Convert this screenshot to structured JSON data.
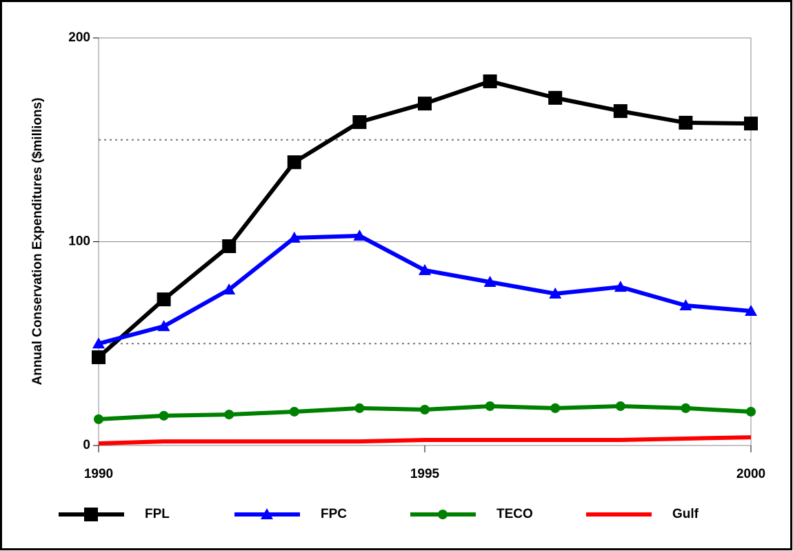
{
  "chart_data": {
    "type": "line",
    "y_label": "Annual Conservation Expenditures ($millions)",
    "x": [
      1990,
      1991,
      1992,
      1993,
      1994,
      1995,
      1996,
      1997,
      1998,
      1999,
      2000
    ],
    "xlim": [
      1990,
      2000
    ],
    "xticks": [
      1990,
      1995,
      2000
    ],
    "ylim": [
      0,
      200
    ],
    "yticks": [
      0,
      100,
      200
    ],
    "minor_yticks": [
      50,
      150
    ],
    "grid": true,
    "legend": "bottom",
    "series": [
      {
        "name": "FPL",
        "color": "#000000",
        "marker": "square",
        "values": [
          43.3,
          71.7,
          97.8,
          139,
          158.7,
          167.8,
          178.7,
          170.6,
          164.1,
          158.4,
          158
        ]
      },
      {
        "name": "FPC",
        "color": "#0000ff",
        "marker": "triangle",
        "values": [
          50,
          58.5,
          76.5,
          101.9,
          102.9,
          86,
          80.2,
          74.5,
          77.8,
          68.7,
          66
        ]
      },
      {
        "name": "TECO",
        "color": "#008000",
        "marker": "circle",
        "values": [
          12.9,
          14.6,
          15.2,
          16.6,
          18.3,
          17.6,
          19.3,
          18.3,
          19.3,
          18.3,
          16.6
        ]
      },
      {
        "name": "Gulf",
        "color": "#ff0000",
        "marker": "none",
        "values": [
          1,
          2,
          2,
          2,
          2,
          2.7,
          2.7,
          2.7,
          2.7,
          3.4,
          4
        ]
      }
    ]
  }
}
